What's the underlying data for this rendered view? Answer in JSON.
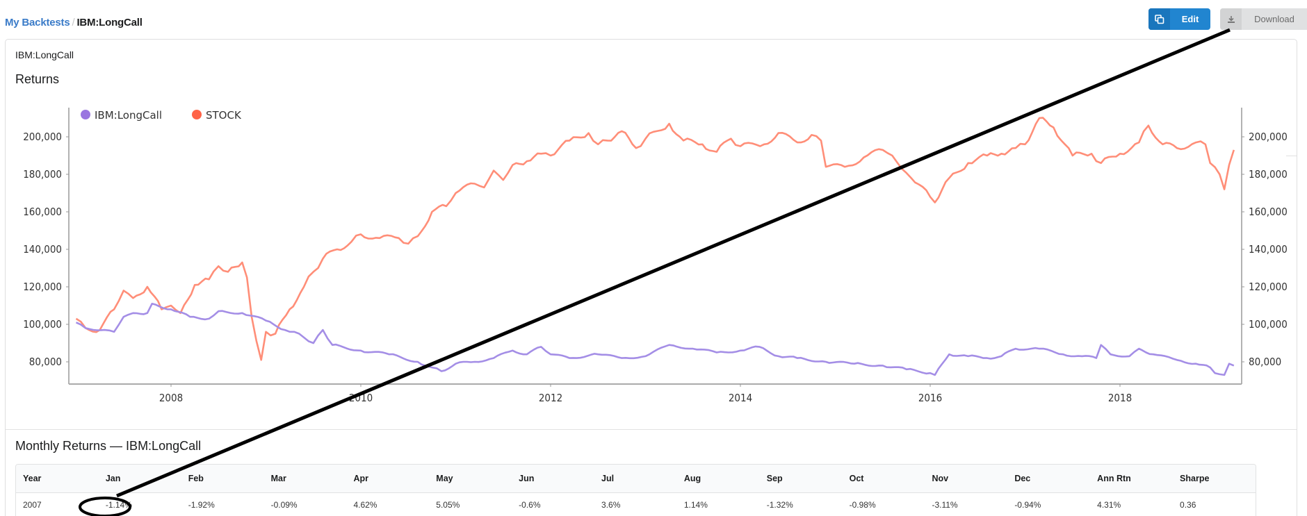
{
  "breadcrumb": {
    "parent": "My Backtests",
    "separator": "/",
    "current": "IBM:LongCall"
  },
  "toolbar": {
    "edit_label": "Edit",
    "edit_icon": "copy-icon",
    "download_label": "Download",
    "download_icon": "download-icon"
  },
  "card": {
    "title": "IBM:LongCall",
    "returns_title": "Returns",
    "monthly_title": "Monthly Returns — IBM:LongCall"
  },
  "colors": {
    "accent": "#2185d0",
    "strategy_line": "#a48ee6",
    "stock_line": "#ff8e78",
    "legend_strategy": "#9a75e0",
    "legend_stock": "#ff6347"
  },
  "chart_data": {
    "type": "line",
    "title": "Returns",
    "xlabel": "",
    "ylabel": "",
    "x_ticks": [
      "2008",
      "2010",
      "2012",
      "2014",
      "2016",
      "2018"
    ],
    "y_ticks": [
      "80,000",
      "100,000",
      "120,000",
      "140,000",
      "160,000",
      "180,000",
      "200,000"
    ],
    "ylim": [
      70000,
      215000
    ],
    "xlim": [
      2006.9,
      2019.28
    ],
    "legend_position": "top-left",
    "grid": false,
    "dual_y_axis": true,
    "series": [
      {
        "name": "IBM:LongCall",
        "color": "#a48ee6",
        "x": [
          2007.0,
          2007.1,
          2007.3,
          2007.4,
          2007.5,
          2007.6,
          2007.75,
          2007.8,
          2008.0,
          2008.2,
          2008.4,
          2008.5,
          2008.75,
          2009.0,
          2009.2,
          2009.3,
          2009.4,
          2009.5,
          2009.6,
          2009.7,
          2010.0,
          2010.3,
          2010.6,
          2010.75,
          2010.85,
          2011.0,
          2011.2,
          2011.4,
          2011.6,
          2011.75,
          2011.9,
          2012.0,
          2012.2,
          2012.5,
          2012.75,
          2013.0,
          2013.25,
          2013.5,
          2013.75,
          2014.0,
          2014.2,
          2014.4,
          2014.6,
          2014.9,
          2015.2,
          2015.5,
          2015.75,
          2016.0,
          2016.05,
          2016.2,
          2016.4,
          2016.6,
          2016.75,
          2016.9,
          2017.15,
          2017.4,
          2017.6,
          2017.75,
          2017.8,
          2017.9,
          2018.1,
          2018.2,
          2018.35,
          2018.6,
          2018.8,
          2018.95,
          2019.0,
          2019.1,
          2019.15,
          2019.2
        ],
        "values": [
          101000,
          98000,
          97000,
          96000,
          104000,
          106000,
          106000,
          111000,
          108000,
          104000,
          103000,
          107000,
          106000,
          102000,
          97000,
          96000,
          93000,
          90000,
          97000,
          89000,
          86000,
          84000,
          80000,
          77000,
          75000,
          79000,
          80000,
          82000,
          86000,
          84000,
          88000,
          84000,
          82000,
          84000,
          82000,
          83000,
          89000,
          87000,
          85000,
          86000,
          88000,
          83000,
          82000,
          80000,
          79000,
          78000,
          76000,
          74000,
          73000,
          84000,
          83000,
          82000,
          83000,
          87000,
          87000,
          84000,
          83000,
          82000,
          89000,
          84000,
          83000,
          87000,
          84000,
          81000,
          79000,
          77000,
          74000,
          73000,
          79000,
          78000
        ]
      },
      {
        "name": "STOCK",
        "color": "#ff8e78",
        "x": [
          2007.0,
          2007.1,
          2007.25,
          2007.4,
          2007.5,
          2007.6,
          2007.75,
          2007.9,
          2008.0,
          2008.1,
          2008.25,
          2008.4,
          2008.5,
          2008.6,
          2008.75,
          2008.8,
          2008.85,
          2008.95,
          2009.0,
          2009.1,
          2009.25,
          2009.4,
          2009.5,
          2009.6,
          2009.75,
          2009.9,
          2010.0,
          2010.2,
          2010.4,
          2010.5,
          2010.6,
          2010.75,
          2010.9,
          2011.0,
          2011.2,
          2011.3,
          2011.4,
          2011.5,
          2011.6,
          2011.75,
          2011.9,
          2012.0,
          2012.2,
          2012.4,
          2012.5,
          2012.6,
          2012.75,
          2012.9,
          2013.0,
          2013.25,
          2013.4,
          2013.6,
          2013.75,
          2013.9,
          2014.0,
          2014.25,
          2014.4,
          2014.6,
          2014.75,
          2014.85,
          2014.9,
          2015.1,
          2015.3,
          2015.5,
          2015.6,
          2015.7,
          2015.8,
          2016.0,
          2016.05,
          2016.2,
          2016.4,
          2016.6,
          2016.75,
          2016.9,
          2017.0,
          2017.15,
          2017.3,
          2017.5,
          2017.7,
          2017.8,
          2018.0,
          2018.2,
          2018.3,
          2018.45,
          2018.6,
          2018.8,
          2018.9,
          2018.95,
          2019.05,
          2019.1,
          2019.15,
          2019.2
        ],
        "values": [
          103000,
          98000,
          97000,
          108000,
          118000,
          114000,
          120000,
          108000,
          110000,
          106000,
          121000,
          124000,
          131000,
          128000,
          133000,
          125000,
          104000,
          81000,
          96000,
          95000,
          108000,
          120000,
          128000,
          135000,
          140000,
          144000,
          148000,
          146000,
          146000,
          143000,
          147000,
          160000,
          163000,
          170000,
          175000,
          173000,
          182000,
          177000,
          185000,
          187000,
          191000,
          190000,
          198000,
          202000,
          196000,
          198000,
          203000,
          194000,
          199000,
          207000,
          198000,
          196000,
          192000,
          199000,
          195000,
          196000,
          202000,
          197000,
          201000,
          198000,
          184000,
          184000,
          189000,
          193000,
          190000,
          183000,
          178000,
          168000,
          165000,
          178000,
          186000,
          190000,
          191000,
          194000,
          196000,
          210000,
          205000,
          190000,
          191000,
          186000,
          191000,
          197000,
          206000,
          196000,
          194000,
          197000,
          196000,
          186000,
          180000,
          172000,
          185000,
          193000
        ]
      }
    ]
  },
  "monthly_table": {
    "columns": [
      "Year",
      "Jan",
      "Feb",
      "Mar",
      "Apr",
      "May",
      "Jun",
      "Jul",
      "Aug",
      "Sep",
      "Oct",
      "Nov",
      "Dec",
      "Ann Rtn",
      "Sharpe"
    ],
    "rows": [
      [
        "2007",
        "-1.14%",
        "-1.92%",
        "-0.09%",
        "4.62%",
        "5.05%",
        "-0.6%",
        "3.6%",
        "1.14%",
        "-1.32%",
        "-0.98%",
        "-3.11%",
        "-0.94%",
        "4.31%",
        "0.36"
      ]
    ]
  }
}
